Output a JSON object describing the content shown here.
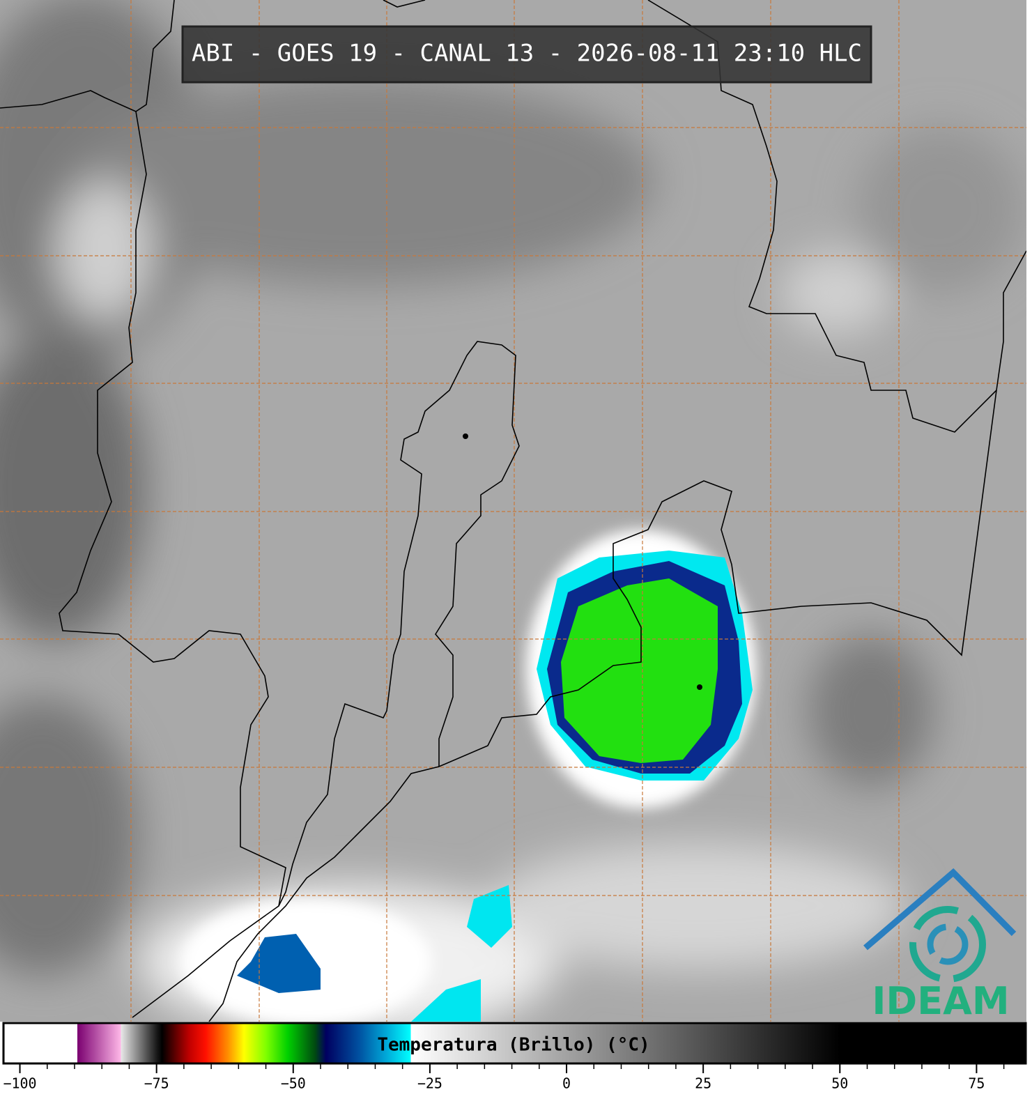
{
  "title": "ABI - GOES 19 - CANAL 13 - 2026-08-11 23:10 HLC",
  "logo": "IDEAM",
  "colorbar": {
    "label": "Temperatura (Brillo) (°C)",
    "lim": [
      -103,
      84
    ],
    "ticks": [
      {
        "value": -100,
        "label": "−100"
      },
      {
        "value": -75,
        "label": "−75"
      },
      {
        "value": -50,
        "label": "−50"
      },
      {
        "value": -25,
        "label": "−25"
      },
      0,
      25,
      50,
      75
    ],
    "minor_ticks": [
      -95,
      -90,
      -85,
      -80,
      -70,
      -65,
      -60,
      -55,
      -45,
      -40,
      -35,
      -30,
      -20,
      -15,
      -10,
      -5,
      5,
      10,
      15,
      20,
      30,
      35,
      40,
      45,
      55,
      60,
      65,
      70,
      80
    ],
    "stops": [
      {
        "value": -103,
        "color": "#ffffff"
      },
      {
        "value": -89.5,
        "color": "#ffffff"
      },
      {
        "value": -89.5,
        "color": "#7a0070"
      },
      {
        "value": -81.5,
        "color": "#ffb8e8"
      },
      {
        "value": -81.5,
        "color": "#e8e8e8"
      },
      {
        "value": -75,
        "color": "#1a1a1a"
      },
      {
        "value": -74,
        "color": "#000000"
      },
      {
        "value": -69,
        "color": "#c00000"
      },
      {
        "value": -66,
        "color": "#ff1000"
      },
      {
        "value": -62,
        "color": "#ff8c00"
      },
      {
        "value": -59,
        "color": "#ffff00"
      },
      {
        "value": -55,
        "color": "#80ff00"
      },
      {
        "value": -51,
        "color": "#00d000"
      },
      {
        "value": -46,
        "color": "#004a10"
      },
      {
        "value": -44,
        "color": "#000060"
      },
      {
        "value": -38,
        "color": "#0050a0"
      },
      {
        "value": -33,
        "color": "#00a8d8"
      },
      {
        "value": -28.5,
        "color": "#00ffff"
      },
      {
        "value": -28.5,
        "color": "#ffffff"
      },
      {
        "value": 50,
        "color": "#000000"
      },
      {
        "value": 84,
        "color": "#000000"
      }
    ]
  }
}
